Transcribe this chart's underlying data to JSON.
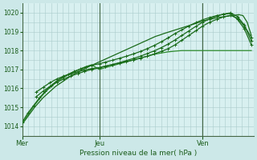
{
  "bg_color": "#cce8e8",
  "plot_bg_color": "#d8f0f0",
  "grid_color_v": "#aacccc",
  "grid_color_h": "#aacccc",
  "xlabel": "Pression niveau de la mer( hPa )",
  "ylim": [
    1013.5,
    1020.5
  ],
  "yticks": [
    1014,
    1015,
    1016,
    1017,
    1018,
    1019,
    1020
  ],
  "day_labels": [
    "Mer",
    "Jeu",
    "Ven"
  ],
  "day_positions": [
    0.0,
    0.333,
    0.78
  ],
  "vline_color": "#446644",
  "series": [
    {
      "x": [
        0.0,
        0.018,
        0.036,
        0.054,
        0.072,
        0.09,
        0.108,
        0.126,
        0.144,
        0.162,
        0.18,
        0.198,
        0.216,
        0.234,
        0.252,
        0.27,
        0.288,
        0.306,
        0.324,
        0.342,
        0.36,
        0.378,
        0.396,
        0.414,
        0.432,
        0.45,
        0.468,
        0.486,
        0.504,
        0.522,
        0.54,
        0.558,
        0.576,
        0.594,
        0.612,
        0.63,
        0.648,
        0.666,
        0.684,
        0.702,
        0.72,
        0.738,
        0.756,
        0.774,
        0.792,
        0.81,
        0.828,
        0.846,
        0.864,
        0.882,
        0.9,
        0.918,
        0.936,
        0.954,
        0.972,
        0.99
      ],
      "y": [
        1014.1,
        1014.4,
        1014.7,
        1015.0,
        1015.25,
        1015.5,
        1015.7,
        1015.9,
        1016.1,
        1016.25,
        1016.4,
        1016.55,
        1016.7,
        1016.82,
        1016.95,
        1017.05,
        1017.15,
        1017.25,
        1017.35,
        1017.45,
        1017.55,
        1017.65,
        1017.75,
        1017.85,
        1017.95,
        1018.05,
        1018.15,
        1018.25,
        1018.35,
        1018.45,
        1018.55,
        1018.65,
        1018.75,
        1018.82,
        1018.9,
        1018.97,
        1019.04,
        1019.11,
        1019.18,
        1019.25,
        1019.32,
        1019.39,
        1019.46,
        1019.53,
        1019.6,
        1019.65,
        1019.7,
        1019.75,
        1019.78,
        1019.81,
        1019.84,
        1019.87,
        1019.9,
        1019.85,
        1019.5,
        1018.8
      ],
      "color": "#1a6b1a",
      "lw": 0.9,
      "marker": null,
      "ms": 2.0
    },
    {
      "x": [
        0.0,
        0.025,
        0.05,
        0.075,
        0.1,
        0.125,
        0.15,
        0.175,
        0.2,
        0.225,
        0.25,
        0.275,
        0.3,
        0.333,
        0.36,
        0.39,
        0.42,
        0.45,
        0.48,
        0.51,
        0.54,
        0.57,
        0.6,
        0.63,
        0.66,
        0.69,
        0.72,
        0.75,
        0.78,
        0.81,
        0.84,
        0.87,
        0.9,
        0.93,
        0.96,
        0.99
      ],
      "y": [
        1014.15,
        1014.6,
        1015.05,
        1015.45,
        1015.8,
        1016.1,
        1016.35,
        1016.55,
        1016.72,
        1016.88,
        1017.02,
        1017.15,
        1017.25,
        1017.0,
        1017.1,
        1017.2,
        1017.3,
        1017.4,
        1017.5,
        1017.6,
        1017.7,
        1017.8,
        1017.87,
        1017.93,
        1017.97,
        1018.0,
        1018.0,
        1018.0,
        1018.0,
        1018.0,
        1018.0,
        1018.0,
        1018.0,
        1018.0,
        1018.0,
        1018.0
      ],
      "color": "#2d8b2d",
      "lw": 0.9,
      "marker": null,
      "ms": 0
    },
    {
      "x": [
        0.06,
        0.09,
        0.12,
        0.15,
        0.18,
        0.21,
        0.24,
        0.27,
        0.3,
        0.333,
        0.36,
        0.39,
        0.42,
        0.45,
        0.48,
        0.51,
        0.54,
        0.57,
        0.6,
        0.63,
        0.66,
        0.69,
        0.72,
        0.75,
        0.78,
        0.81,
        0.84,
        0.87,
        0.9,
        0.93,
        0.96,
        0.99
      ],
      "y": [
        1015.8,
        1016.05,
        1016.3,
        1016.5,
        1016.65,
        1016.78,
        1016.88,
        1016.97,
        1017.05,
        1017.1,
        1017.18,
        1017.26,
        1017.34,
        1017.42,
        1017.5,
        1017.6,
        1017.7,
        1017.82,
        1017.95,
        1018.1,
        1018.3,
        1018.55,
        1018.8,
        1019.05,
        1019.3,
        1019.5,
        1019.65,
        1019.78,
        1019.87,
        1019.7,
        1019.3,
        1018.7
      ],
      "color": "#1a6b1a",
      "lw": 0.9,
      "marker": "+",
      "ms": 3.0
    },
    {
      "x": [
        0.06,
        0.09,
        0.12,
        0.15,
        0.18,
        0.21,
        0.24,
        0.27,
        0.3,
        0.333,
        0.36,
        0.39,
        0.42,
        0.45,
        0.48,
        0.51,
        0.54,
        0.57,
        0.6,
        0.63,
        0.66,
        0.69,
        0.72,
        0.75,
        0.78,
        0.81,
        0.84,
        0.87,
        0.9,
        0.93,
        0.96,
        0.99
      ],
      "y": [
        1015.55,
        1015.85,
        1016.1,
        1016.32,
        1016.5,
        1016.65,
        1016.78,
        1016.9,
        1017.0,
        1017.08,
        1017.17,
        1017.26,
        1017.36,
        1017.47,
        1017.58,
        1017.7,
        1017.84,
        1017.98,
        1018.15,
        1018.34,
        1018.56,
        1018.8,
        1019.04,
        1019.28,
        1019.5,
        1019.68,
        1019.82,
        1019.93,
        1020.0,
        1019.8,
        1019.35,
        1018.5
      ],
      "color": "#1a6b1a",
      "lw": 0.9,
      "marker": "+",
      "ms": 3.0
    },
    {
      "x": [
        0.0,
        0.025,
        0.05,
        0.075,
        0.1,
        0.125,
        0.15,
        0.175,
        0.2,
        0.225,
        0.25,
        0.275,
        0.3,
        0.333,
        0.36,
        0.39,
        0.42,
        0.45,
        0.48,
        0.51,
        0.54,
        0.57,
        0.6,
        0.63,
        0.66,
        0.69,
        0.72,
        0.75,
        0.78,
        0.81,
        0.84,
        0.87,
        0.9,
        0.93,
        0.96,
        0.99
      ],
      "y": [
        1014.2,
        1014.7,
        1015.1,
        1015.5,
        1015.85,
        1016.15,
        1016.4,
        1016.6,
        1016.75,
        1016.9,
        1017.02,
        1017.13,
        1017.22,
        1017.3,
        1017.39,
        1017.49,
        1017.59,
        1017.7,
        1017.82,
        1017.95,
        1018.1,
        1018.27,
        1018.46,
        1018.67,
        1018.9,
        1019.1,
        1019.3,
        1019.48,
        1019.63,
        1019.75,
        1019.85,
        1019.92,
        1019.97,
        1019.65,
        1019.15,
        1018.3
      ],
      "color": "#1a6b1a",
      "lw": 0.9,
      "marker": "+",
      "ms": 3.0
    }
  ],
  "xmax": 1.0
}
